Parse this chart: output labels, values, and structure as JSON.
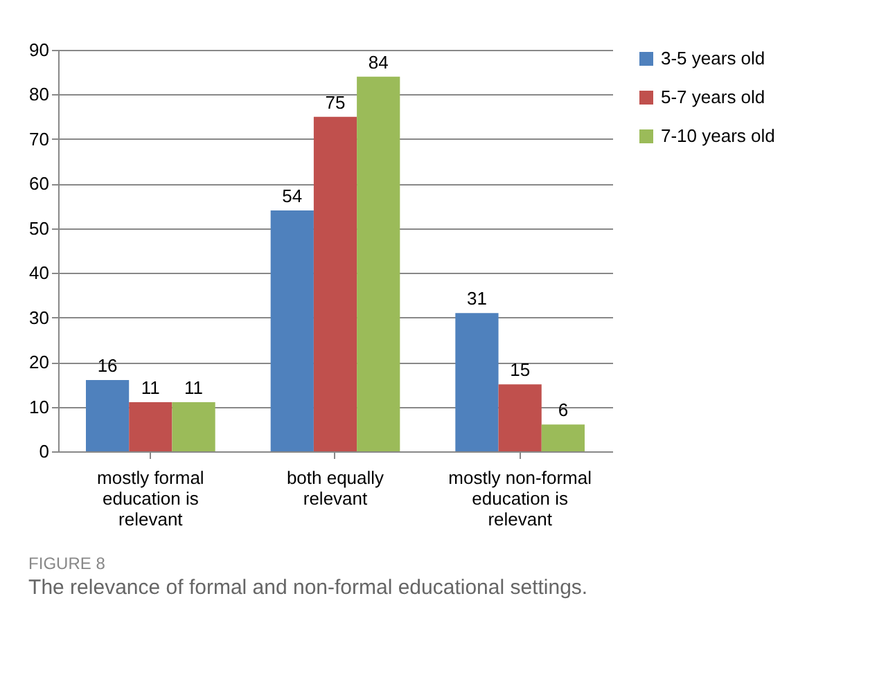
{
  "chart_data": {
    "type": "bar",
    "categories": [
      "mostly formal education is relevant",
      "both equally relevant",
      "mostly non-formal education is relevant"
    ],
    "series": [
      {
        "name": "3-5 years old",
        "color": "#4f81bd",
        "values": [
          16,
          54,
          31
        ]
      },
      {
        "name": "5-7 years old",
        "color": "#c0504d",
        "values": [
          11,
          75,
          15
        ]
      },
      {
        "name": "7-10 years old",
        "color": "#9bbb59",
        "values": [
          11,
          84,
          6
        ]
      }
    ],
    "ylim": [
      0,
      90
    ],
    "yticks": [
      0,
      10,
      20,
      30,
      40,
      50,
      60,
      70,
      80,
      90
    ],
    "grid": "y",
    "legend": "right",
    "data_labels": true,
    "annotations": [
      "FIGURE 8",
      "The relevance of formal and non-formal educational settings."
    ]
  }
}
